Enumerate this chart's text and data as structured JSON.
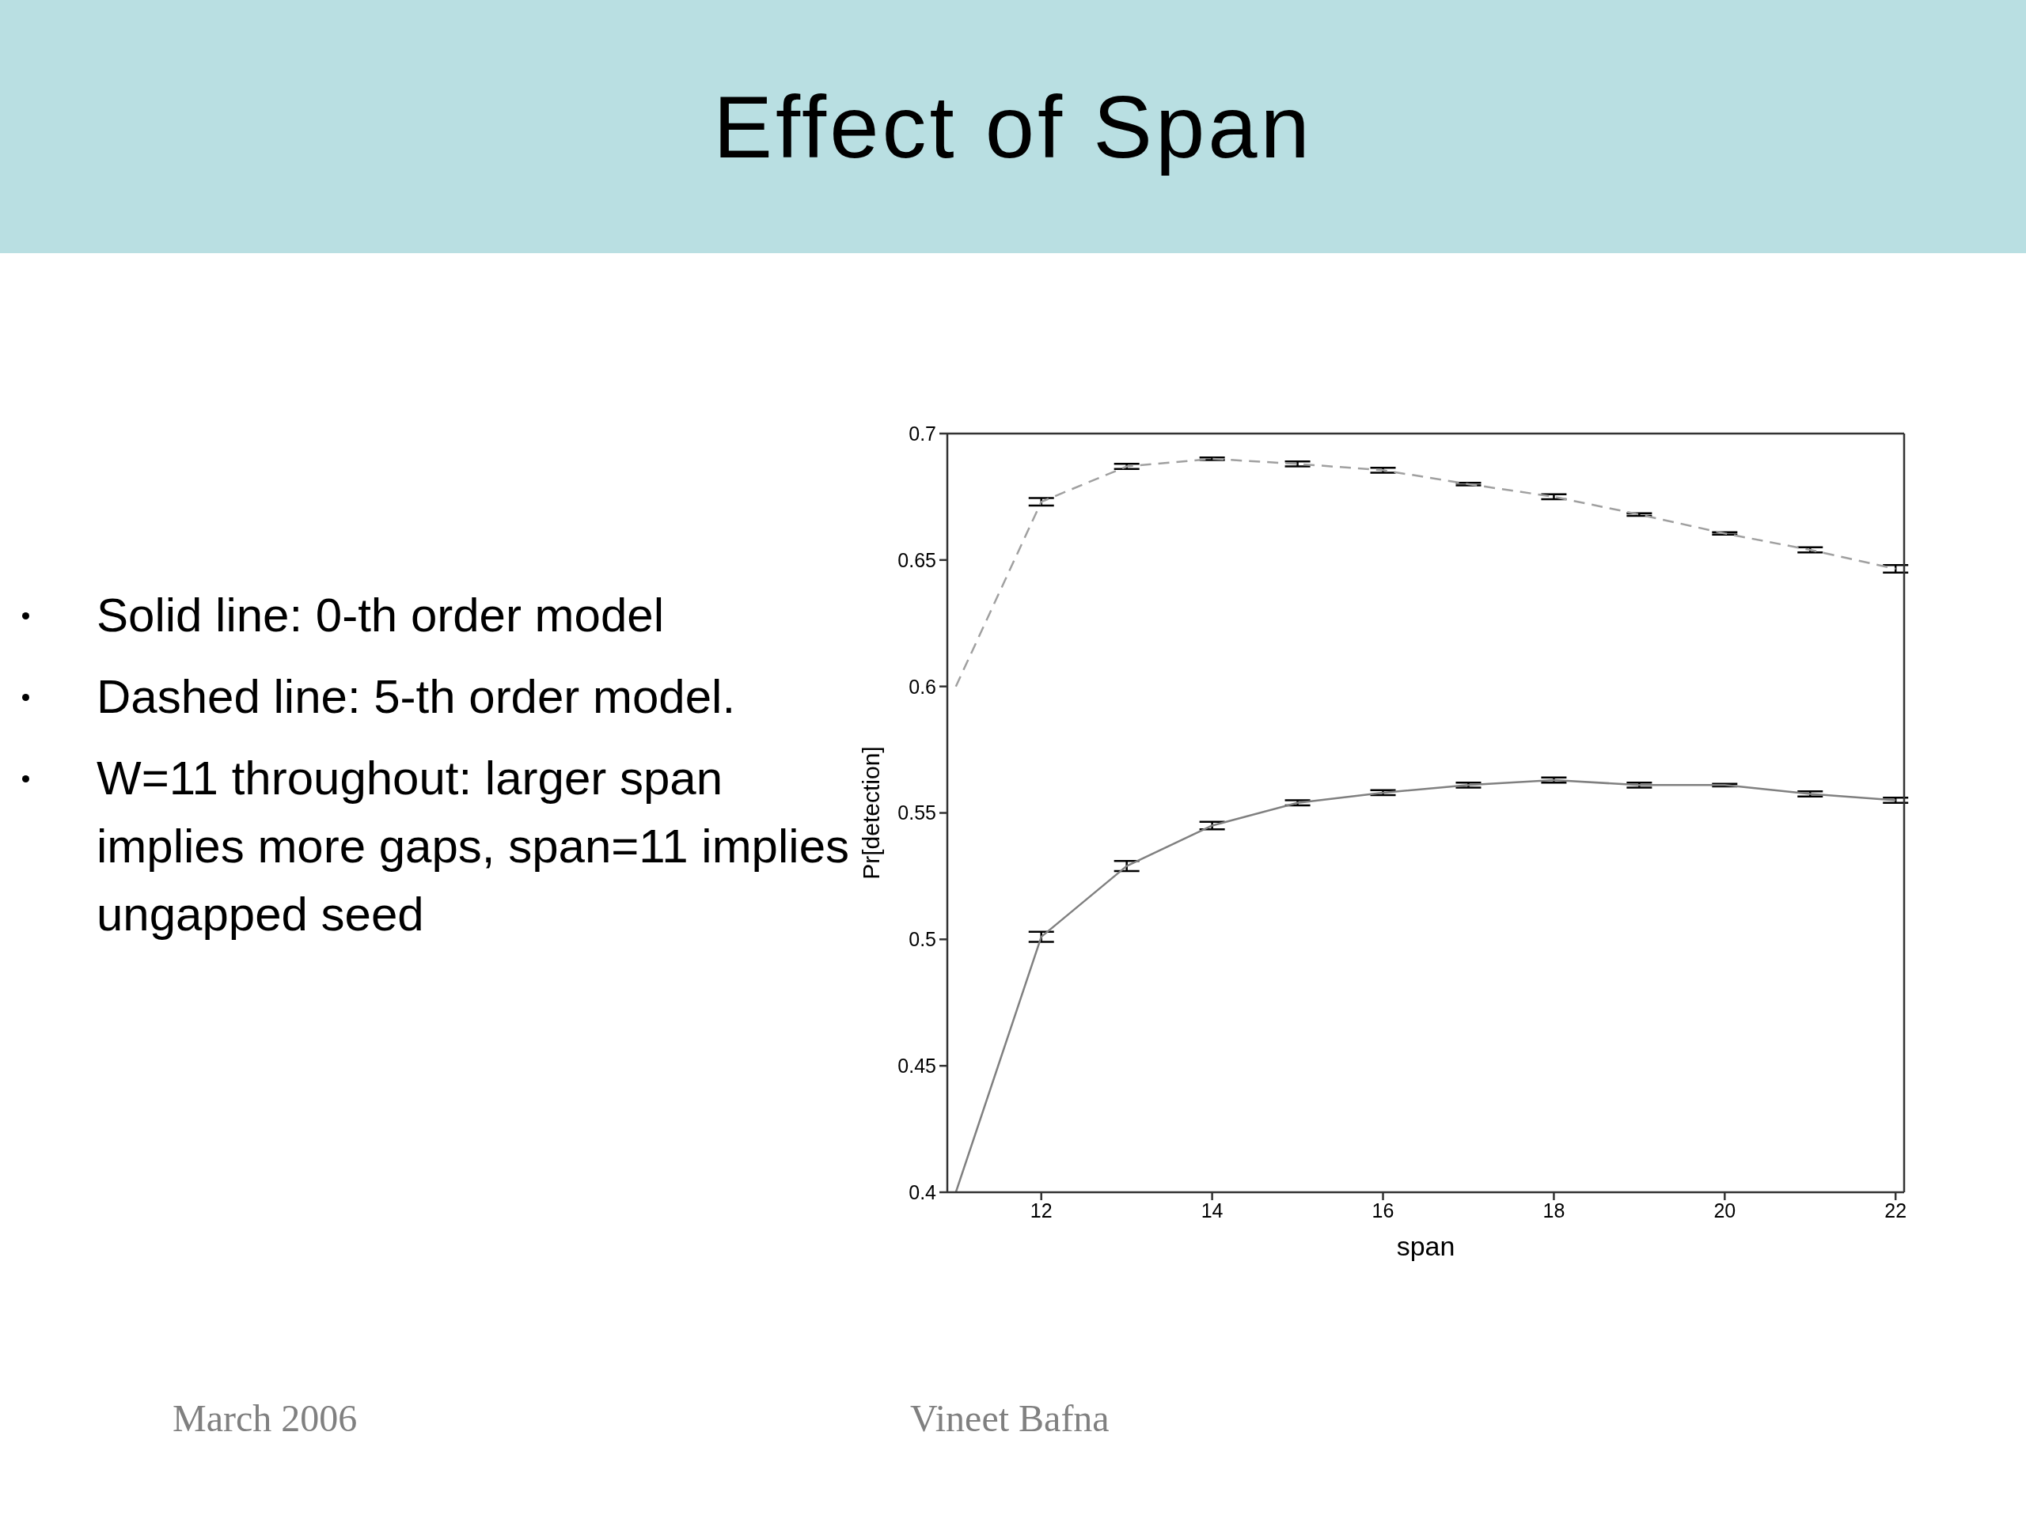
{
  "chart_data": {
    "type": "line",
    "title": "Effect of Span",
    "xlabel": "span",
    "ylabel": "Pr[detection]",
    "x": [
      11,
      12,
      13,
      14,
      15,
      16,
      17,
      18,
      19,
      20,
      21,
      22
    ],
    "series": [
      {
        "color": "#808080",
        "line_style": "solid",
        "values": [
          0.4,
          0.501,
          0.529,
          0.545,
          0.554,
          0.558,
          0.561,
          0.563,
          0.561,
          0.561,
          0.5575,
          0.555
        ],
        "errors": [
          null,
          0.002,
          0.002,
          0.0015,
          0.001,
          0.001,
          0.001,
          0.001,
          0.001,
          0.0005,
          0.001,
          0.001
        ]
      },
      {
        "color": "#a0a0a0",
        "line_style": "dashed",
        "values": [
          0.6,
          0.673,
          0.687,
          0.69,
          0.688,
          0.6855,
          0.68,
          0.675,
          0.668,
          0.6605,
          0.654,
          0.6465
        ],
        "errors": [
          null,
          0.0015,
          0.001,
          0.0005,
          0.001,
          0.001,
          0.0005,
          0.001,
          0.0005,
          0.0005,
          0.001,
          0.0015
        ]
      }
    ],
    "xlim": [
      10.9,
      22.1
    ],
    "xticks": [
      12,
      14,
      16,
      18,
      20,
      22
    ],
    "ylim": [
      0.4,
      0.7
    ],
    "yticks": [
      0.4,
      0.45,
      0.5,
      0.55,
      0.6,
      0.65,
      0.7
    ],
    "marker": "none",
    "annotations": [
      "Solid line: 0-th order model",
      "Dashed line: 5-th order model.",
      "W=11 throughout: larger span implies more gaps, span=11 implies ungapped seed",
      "March 2006",
      "Vineet Bafna"
    ]
  }
}
